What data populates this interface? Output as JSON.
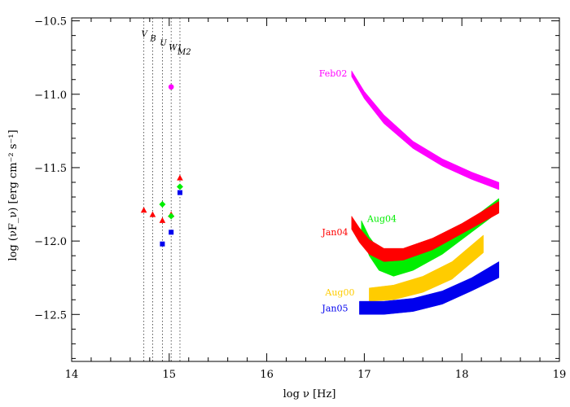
{
  "chart_data": {
    "type": "scatter",
    "xlabel_text": "log ν [Hz]",
    "ylabel_text": "log (νF_ν) [erg cm⁻² s⁻¹]",
    "xlim": [
      14,
      19
    ],
    "ylim": [
      -12.82,
      -10.48
    ],
    "x_ticks": [
      14,
      15,
      16,
      17,
      18,
      19
    ],
    "x_tick_labels": [
      "14",
      "15",
      "16",
      "17",
      "18",
      "19"
    ],
    "y_ticks": [
      -10.5,
      -11.0,
      -11.5,
      -12.0,
      -12.5
    ],
    "y_tick_labels": [
      "−10.5",
      "−11.0",
      "−11.5",
      "−12.0",
      "−12.5"
    ],
    "filters": [
      {
        "name": "V",
        "x": 14.74
      },
      {
        "name": "B",
        "x": 14.83
      },
      {
        "name": "U",
        "x": 14.93
      },
      {
        "name": "W1",
        "x": 15.02
      },
      {
        "name": "M2",
        "x": 15.11
      }
    ],
    "points": [
      {
        "group": "Feb02",
        "color": "#ff00ff",
        "marker": "circle",
        "x": [
          15.02
        ],
        "y": [
          -10.95
        ]
      },
      {
        "group": "Jan04",
        "color": "#ff0000",
        "marker": "triangle",
        "x": [
          14.74,
          14.83,
          14.93,
          15.02,
          15.11
        ],
        "y": [
          -11.79,
          -11.82,
          -11.86,
          -11.82,
          -11.57
        ]
      },
      {
        "group": "Aug04",
        "color": "#00ee00",
        "marker": "diamond",
        "x": [
          14.93,
          15.02,
          15.11
        ],
        "y": [
          -11.75,
          -11.83,
          -11.63
        ]
      },
      {
        "group": "Jan05",
        "color": "#0000ee",
        "marker": "square",
        "x": [
          14.93,
          15.02,
          15.11
        ],
        "y": [
          -12.02,
          -11.94,
          -11.67
        ]
      }
    ],
    "bands": [
      {
        "name": "Feb02",
        "color": "#ff00ff",
        "label_x": 16.68,
        "label_y": -10.88,
        "x": [
          16.87,
          17.0,
          17.2,
          17.5,
          17.8,
          18.1,
          18.38
        ],
        "upper": [
          -10.84,
          -10.98,
          -11.14,
          -11.32,
          -11.44,
          -11.53,
          -11.6
        ],
        "lower": [
          -10.88,
          -11.03,
          -11.2,
          -11.37,
          -11.49,
          -11.58,
          -11.65
        ]
      },
      {
        "name": "Aug04",
        "color": "#00ee00",
        "label_x": 17.18,
        "label_y": -11.87,
        "x": [
          16.97,
          17.05,
          17.15,
          17.3,
          17.5,
          17.8,
          18.1,
          18.38
        ],
        "upper": [
          -11.86,
          -11.97,
          -12.06,
          -12.1,
          -12.07,
          -11.98,
          -11.85,
          -11.71
        ],
        "lower": [
          -11.95,
          -12.1,
          -12.2,
          -12.24,
          -12.2,
          -12.09,
          -11.94,
          -11.8
        ]
      },
      {
        "name": "Jan04",
        "color": "#ff0000",
        "label_x": 16.7,
        "label_y": -11.96,
        "x": [
          16.87,
          16.95,
          17.05,
          17.2,
          17.4,
          17.7,
          18.0,
          18.38
        ],
        "upper": [
          -11.83,
          -11.91,
          -11.99,
          -12.05,
          -12.05,
          -11.98,
          -11.88,
          -11.73
        ],
        "lower": [
          -11.92,
          -12.01,
          -12.09,
          -12.14,
          -12.13,
          -12.06,
          -11.95,
          -11.81
        ]
      },
      {
        "name": "Aug00",
        "color": "#ffcc00",
        "label_x": 16.75,
        "label_y": -12.37,
        "x": [
          17.05,
          17.3,
          17.6,
          17.9,
          18.22
        ],
        "upper": [
          -12.32,
          -12.3,
          -12.24,
          -12.14,
          -11.96
        ],
        "lower": [
          -12.41,
          -12.4,
          -12.35,
          -12.26,
          -12.08
        ]
      },
      {
        "name": "Jan05",
        "color": "#0000ee",
        "label_x": 16.7,
        "label_y": -12.48,
        "x": [
          16.95,
          17.2,
          17.5,
          17.8,
          18.1,
          18.38
        ],
        "upper": [
          -12.41,
          -12.41,
          -12.39,
          -12.34,
          -12.25,
          -12.14
        ],
        "lower": [
          -12.5,
          -12.5,
          -12.48,
          -12.43,
          -12.34,
          -12.25
        ]
      }
    ]
  }
}
